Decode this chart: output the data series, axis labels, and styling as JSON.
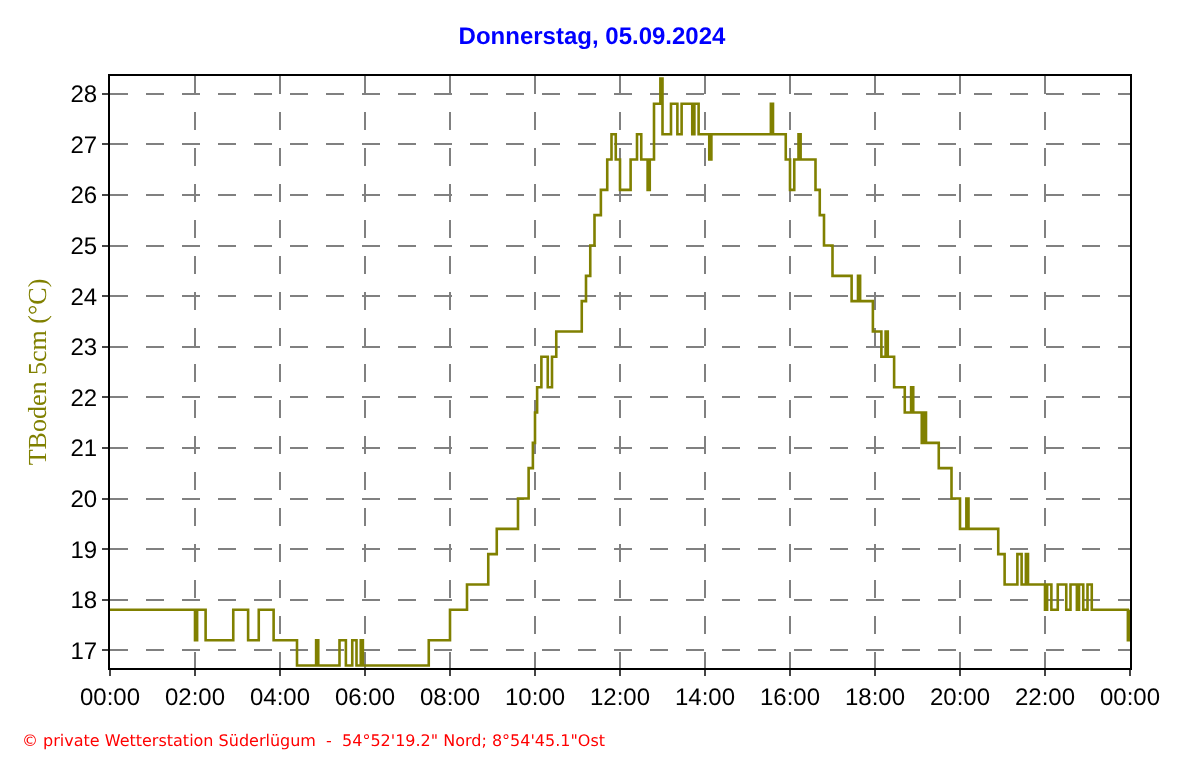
{
  "chart_data": {
    "type": "step",
    "title": "Donnerstag, 05.09.2024",
    "ylabel": "TBoden 5cm (°C)",
    "annotations": [
      "© private Wetterstation Süderlügum  -  54°52'19.2\" Nord; 8°54'45.1\"Ost"
    ],
    "xlim": [
      0,
      24
    ],
    "ylim": [
      16.65,
      28.35
    ],
    "xticks": [
      {
        "value": 0,
        "label": "00:00"
      },
      {
        "value": 2,
        "label": "02:00"
      },
      {
        "value": 4,
        "label": "04:00"
      },
      {
        "value": 6,
        "label": "06:00"
      },
      {
        "value": 8,
        "label": "08:00"
      },
      {
        "value": 10,
        "label": "10:00"
      },
      {
        "value": 12,
        "label": "12:00"
      },
      {
        "value": 14,
        "label": "14:00"
      },
      {
        "value": 16,
        "label": "16:00"
      },
      {
        "value": 18,
        "label": "18:00"
      },
      {
        "value": 20,
        "label": "20:00"
      },
      {
        "value": 22,
        "label": "22:00"
      },
      {
        "value": 24,
        "label": "00:00"
      }
    ],
    "yticks": [
      17,
      18,
      19,
      20,
      21,
      22,
      23,
      24,
      25,
      26,
      27,
      28
    ],
    "grid": true,
    "series": [
      {
        "color": "#808000",
        "x": [
          0,
          2.0,
          2.05,
          2.25,
          2.9,
          3.25,
          3.5,
          3.85,
          4.4,
          4.85,
          4.9,
          5.4,
          5.55,
          5.7,
          5.8,
          5.9,
          5.95,
          7.5,
          8.0,
          8.4,
          8.9,
          9.1,
          9.6,
          9.85,
          9.95,
          10.0,
          10.05,
          10.15,
          10.3,
          10.4,
          10.5,
          11.1,
          11.2,
          11.3,
          11.4,
          11.55,
          11.7,
          11.8,
          11.9,
          12.0,
          12.25,
          12.4,
          12.5,
          12.65,
          12.7,
          12.8,
          12.95,
          13.0,
          13.2,
          13.35,
          13.45,
          13.7,
          13.75,
          13.85,
          14.1,
          14.15,
          15.55,
          15.6,
          15.9,
          16.0,
          16.1,
          16.2,
          16.25,
          16.6,
          16.7,
          16.8,
          17.0,
          17.45,
          17.6,
          17.65,
          17.95,
          18.15,
          18.25,
          18.3,
          18.45,
          18.7,
          18.85,
          18.9,
          19.1,
          19.15,
          19.2,
          19.5,
          19.8,
          20.0,
          20.15,
          20.2,
          20.9,
          21.05,
          21.35,
          21.45,
          21.55,
          21.6,
          22.0,
          22.05,
          22.15,
          22.3,
          22.5,
          22.6,
          22.75,
          22.8,
          22.9,
          23.0,
          23.1,
          23.95,
          24.0
        ],
        "values": [
          17.8,
          17.2,
          17.8,
          17.2,
          17.8,
          17.2,
          17.8,
          17.2,
          16.7,
          17.2,
          16.7,
          17.2,
          16.7,
          17.2,
          16.7,
          17.2,
          16.7,
          17.2,
          17.8,
          18.3,
          18.9,
          19.4,
          20.0,
          20.6,
          21.1,
          21.7,
          22.2,
          22.8,
          22.2,
          22.8,
          23.3,
          23.9,
          24.4,
          25.0,
          25.6,
          26.1,
          26.7,
          27.2,
          26.7,
          26.1,
          26.7,
          27.2,
          26.7,
          26.1,
          26.7,
          27.8,
          28.3,
          27.2,
          27.8,
          27.2,
          27.8,
          27.2,
          27.8,
          27.2,
          26.7,
          27.2,
          27.8,
          27.2,
          26.7,
          26.1,
          26.7,
          27.2,
          26.7,
          26.1,
          25.6,
          25.0,
          24.4,
          23.9,
          24.4,
          23.9,
          23.3,
          22.8,
          23.3,
          22.8,
          22.2,
          21.7,
          22.2,
          21.7,
          21.1,
          21.7,
          21.1,
          20.6,
          20.0,
          19.4,
          20.0,
          19.4,
          18.9,
          18.3,
          18.9,
          18.3,
          18.9,
          18.3,
          17.8,
          18.3,
          17.8,
          18.3,
          17.8,
          18.3,
          17.8,
          18.3,
          17.8,
          18.3,
          17.8,
          17.2,
          17.8
        ]
      }
    ]
  }
}
